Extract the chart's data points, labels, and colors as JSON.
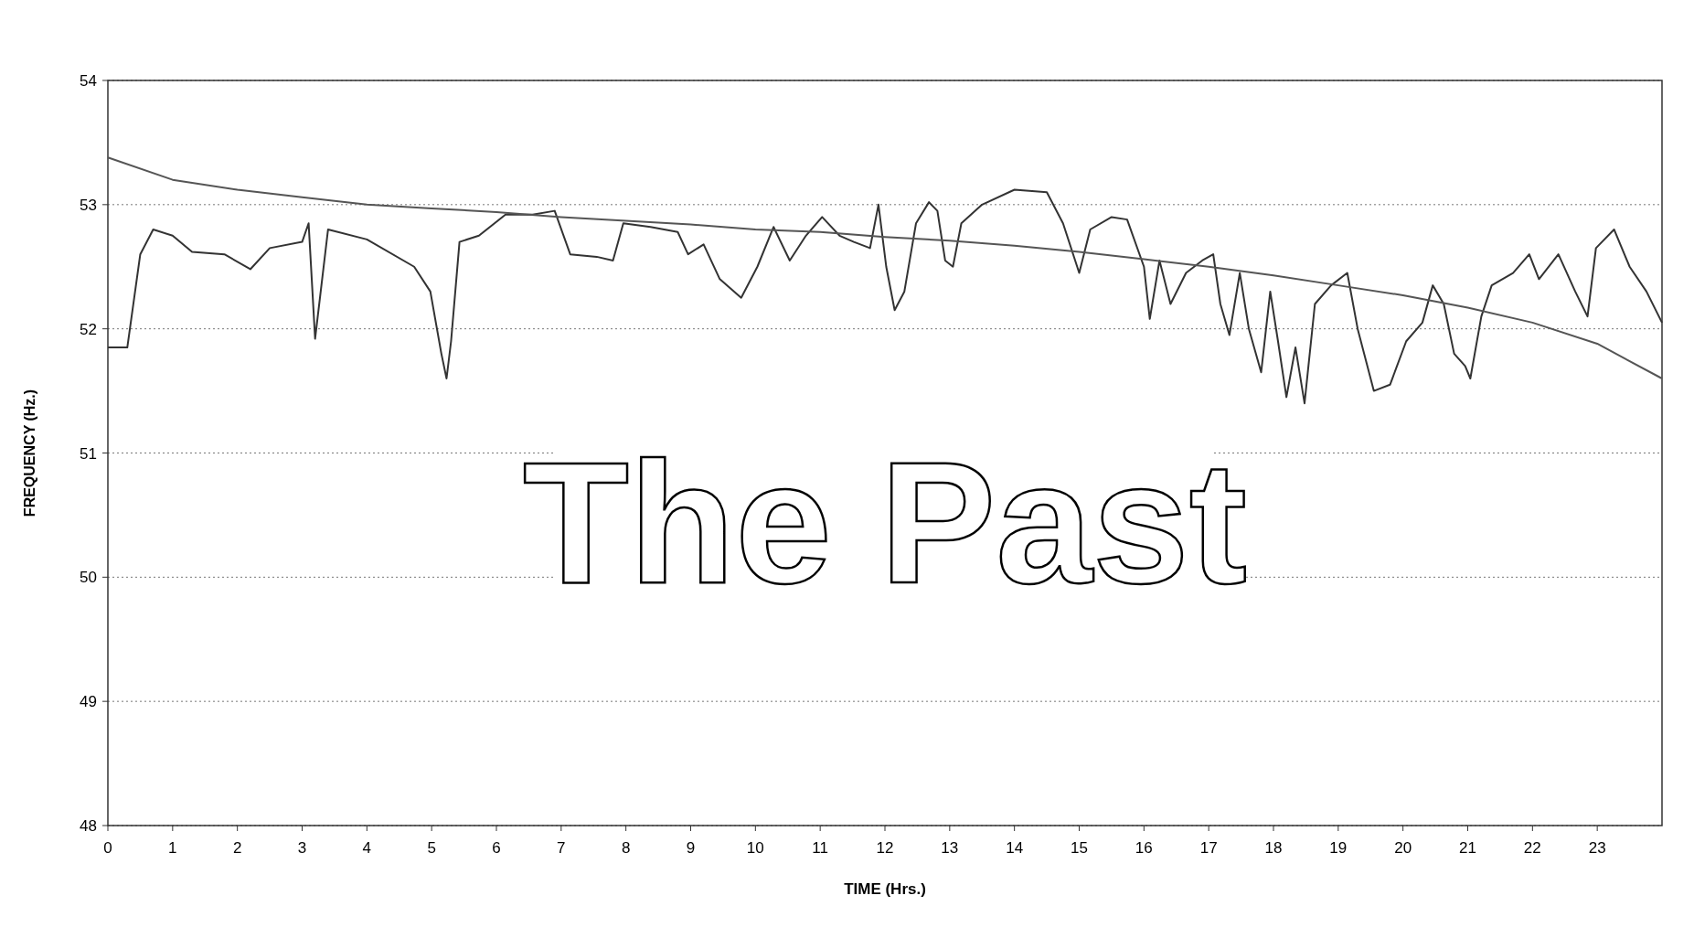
{
  "chart_data": {
    "type": "line",
    "xlabel": "TIME (Hrs.)",
    "ylabel": "FREQUENCY (Hz.)",
    "annotations": [
      "The Past"
    ],
    "xlim": [
      0,
      24
    ],
    "ylim": [
      48,
      54
    ],
    "xticks": [
      0,
      1,
      2,
      3,
      4,
      5,
      6,
      7,
      8,
      9,
      10,
      11,
      12,
      13,
      14,
      15,
      16,
      17,
      18,
      19,
      20,
      21,
      22,
      23
    ],
    "yticks": [
      48,
      49,
      50,
      51,
      52,
      53,
      54
    ],
    "grid": "y",
    "line_style": "solid",
    "marker": "none",
    "series": [
      {
        "color": "#333333",
        "x": [
          0,
          0.3,
          0.5,
          0.7,
          1.0,
          1.3,
          1.8,
          2.2,
          2.5,
          3.0,
          3.1,
          3.2,
          3.4,
          4.0,
          4.73,
          4.98,
          5.15,
          5.23,
          5.3,
          5.43,
          5.73,
          6.14,
          6.56,
          6.9,
          7.14,
          7.55,
          7.8,
          7.96,
          8.38,
          8.8,
          8.96,
          9.2,
          9.45,
          9.78,
          10.03,
          10.28,
          10.53,
          10.78,
          11.03,
          11.3,
          11.52,
          11.77,
          11.9,
          12.02,
          12.15,
          12.3,
          12.48,
          12.68,
          12.81,
          12.93,
          13.05,
          13.18,
          13.5,
          14.0,
          14.5,
          14.75,
          15.0,
          15.17,
          15.5,
          15.74,
          16.0,
          16.09,
          16.24,
          16.41,
          16.65,
          16.9,
          17.07,
          17.18,
          17.32,
          17.48,
          17.62,
          17.81,
          17.95,
          18.07,
          18.2,
          18.34,
          18.48,
          18.64,
          18.89,
          19.14,
          19.3,
          19.55,
          19.8,
          20.05,
          20.3,
          20.46,
          20.63,
          20.79,
          20.96,
          21.04,
          21.21,
          21.37,
          21.7,
          21.95,
          22.1,
          22.4,
          22.66,
          22.85,
          22.98,
          23.26,
          23.5,
          23.76,
          24
        ],
        "values": [
          51.85,
          51.85,
          52.6,
          52.8,
          52.75,
          52.62,
          52.6,
          52.48,
          52.65,
          52.7,
          52.85,
          51.92,
          52.8,
          52.72,
          52.5,
          52.3,
          51.8,
          51.6,
          51.9,
          52.7,
          52.75,
          52.92,
          52.92,
          52.95,
          52.6,
          52.58,
          52.55,
          52.85,
          52.82,
          52.78,
          52.6,
          52.68,
          52.4,
          52.25,
          52.5,
          52.82,
          52.55,
          52.75,
          52.9,
          52.75,
          52.7,
          52.65,
          53.0,
          52.5,
          52.15,
          52.3,
          52.85,
          53.02,
          52.95,
          52.55,
          52.5,
          52.85,
          53.0,
          53.12,
          53.1,
          52.85,
          52.45,
          52.8,
          52.9,
          52.88,
          52.5,
          52.08,
          52.55,
          52.2,
          52.45,
          52.55,
          52.6,
          52.2,
          51.95,
          52.45,
          52.0,
          51.65,
          52.3,
          51.9,
          51.45,
          51.85,
          51.4,
          52.2,
          52.35,
          52.45,
          52.0,
          51.5,
          51.55,
          51.9,
          52.05,
          52.35,
          52.2,
          51.8,
          51.7,
          51.6,
          52.1,
          52.35,
          52.45,
          52.6,
          52.4,
          52.6,
          52.3,
          52.1,
          52.65,
          52.8,
          52.5,
          52.3,
          52.05
        ]
      },
      {
        "color": "#555555",
        "x": [
          0,
          1,
          2,
          3,
          4,
          5,
          6,
          7,
          8,
          9,
          10,
          11,
          12,
          13,
          14,
          15,
          16,
          17,
          18,
          19,
          20,
          21,
          22,
          23,
          24
        ],
        "values": [
          53.38,
          53.2,
          53.12,
          53.06,
          53.0,
          52.97,
          52.94,
          52.9,
          52.87,
          52.84,
          52.8,
          52.78,
          52.74,
          52.71,
          52.67,
          52.62,
          52.56,
          52.5,
          52.43,
          52.35,
          52.27,
          52.17,
          52.05,
          51.88,
          51.6
        ]
      }
    ]
  }
}
